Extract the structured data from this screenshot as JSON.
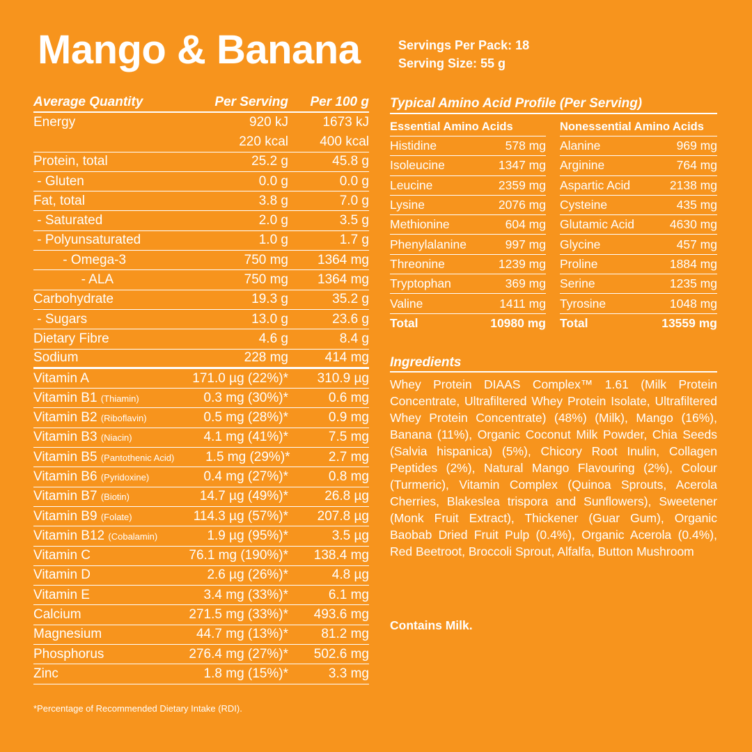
{
  "title": "Mango & Banana",
  "servings_per_pack": "Servings Per Pack: 18",
  "serving_size": "Serving Size: 55 g",
  "nutrition": {
    "headers": [
      "Average Quantity",
      "Per Serving",
      "Per 100 g"
    ],
    "rows": [
      {
        "name": "Energy",
        "serving": "920 kJ",
        "per100": "1673 kJ"
      },
      {
        "name": "",
        "serving": "220 kcal",
        "per100": "400 kcal"
      },
      {
        "name": "Protein, total",
        "serving": "25.2 g",
        "per100": "45.8 g"
      },
      {
        "name": " - Gluten",
        "serving": "0.0 g",
        "per100": "0.0 g"
      },
      {
        "name": "Fat, total",
        "serving": "3.8 g",
        "per100": "7.0 g"
      },
      {
        "name": " - Saturated",
        "serving": "2.0 g",
        "per100": "3.5 g"
      },
      {
        "name": " - Polyunsaturated",
        "serving": "1.0 g",
        "per100": "1.7 g"
      },
      {
        "name": "        - Omega-3",
        "serving": "750 mg",
        "per100": "1364 mg"
      },
      {
        "name": "             - ALA",
        "serving": "750 mg",
        "per100": "1364 mg"
      },
      {
        "name": "Carbohydrate",
        "serving": "19.3 g",
        "per100": "35.2 g"
      },
      {
        "name": " - Sugars",
        "serving": "13.0 g",
        "per100": "23.6 g"
      },
      {
        "name": "Dietary Fibre",
        "serving": "4.6 g",
        "per100": "8.4 g"
      },
      {
        "name": "Sodium",
        "serving": "228 mg",
        "per100": "414 mg"
      }
    ],
    "vitamins": [
      {
        "name": "Vitamin A",
        "sub": "",
        "serving": "171.0 µg (22%)*",
        "per100": "310.9 µg"
      },
      {
        "name": "Vitamin B1 ",
        "sub": "(Thiamin)",
        "serving": "0.3 mg (30%)*",
        "per100": "0.6 mg"
      },
      {
        "name": "Vitamin B2 ",
        "sub": "(Riboflavin)",
        "serving": "0.5 mg (28%)*",
        "per100": "0.9 mg"
      },
      {
        "name": "Vitamin B3 ",
        "sub": "(Niacin)",
        "serving": "4.1 mg (41%)*",
        "per100": "7.5 mg"
      },
      {
        "name": "Vitamin B5 ",
        "sub": "(Pantothenic Acid)",
        "serving": "1.5 mg (29%)*",
        "per100": "2.7 mg"
      },
      {
        "name": "Vitamin B6 ",
        "sub": "(Pyridoxine)",
        "serving": "0.4 mg (27%)*",
        "per100": "0.8 mg"
      },
      {
        "name": "Vitamin B7 ",
        "sub": "(Biotin)",
        "serving": "14.7 µg (49%)*",
        "per100": "26.8 µg"
      },
      {
        "name": "Vitamin B9 ",
        "sub": "(Folate)",
        "serving": "114.3 µg (57%)*",
        "per100": "207.8 µg"
      },
      {
        "name": "Vitamin B12 ",
        "sub": "(Cobalamin)",
        "serving": "1.9 µg (95%)*",
        "per100": "3.5 µg"
      },
      {
        "name": "Vitamin C",
        "sub": "",
        "serving": "76.1 mg (190%)*",
        "per100": "138.4 mg"
      },
      {
        "name": "Vitamin D",
        "sub": "",
        "serving": "2.6 µg (26%)*",
        "per100": "4.8 µg"
      },
      {
        "name": "Vitamin E",
        "sub": "",
        "serving": "3.4 mg (33%)*",
        "per100": "6.1 mg"
      },
      {
        "name": "Calcium",
        "sub": "",
        "serving": "271.5 mg (33%)*",
        "per100": "493.6 mg"
      },
      {
        "name": "Magnesium",
        "sub": "",
        "serving": "44.7 mg (13%)*",
        "per100": "81.2 mg"
      },
      {
        "name": "Phosphorus",
        "sub": "",
        "serving": "276.4 mg (27%)*",
        "per100": "502.6 mg"
      },
      {
        "name": "Zinc",
        "sub": "",
        "serving": "1.8 mg (15%)*",
        "per100": "3.3 mg"
      }
    ],
    "footnote": "*Percentage of Recommended Dietary Intake (RDI)."
  },
  "amino": {
    "title": "Typical Amino Acid Profile (Per Serving)",
    "essential": {
      "header": "Essential Amino Acids",
      "items": [
        [
          "Histidine",
          "578 mg"
        ],
        [
          "Isoleucine",
          "1347 mg"
        ],
        [
          "Leucine",
          "2359 mg"
        ],
        [
          "Lysine",
          "2076 mg"
        ],
        [
          "Methionine",
          "604 mg"
        ],
        [
          "Phenylalanine",
          "997 mg"
        ],
        [
          "Threonine",
          "1239 mg"
        ],
        [
          "Tryptophan",
          "369 mg"
        ],
        [
          "Valine",
          "1411 mg"
        ]
      ],
      "total": [
        "Total",
        "10980 mg"
      ]
    },
    "nonessential": {
      "header": "Nonessential Amino Acids",
      "items": [
        [
          "Alanine",
          "969 mg"
        ],
        [
          "Arginine",
          "764 mg"
        ],
        [
          "Aspartic Acid",
          "2138 mg"
        ],
        [
          "Cysteine",
          "435 mg"
        ],
        [
          "Glutamic Acid",
          "4630 mg"
        ],
        [
          "Glycine",
          "457 mg"
        ],
        [
          "Proline",
          "1884 mg"
        ],
        [
          "Serine",
          "1235 mg"
        ],
        [
          "Tyrosine",
          "1048 mg"
        ]
      ],
      "total": [
        "Total",
        "13559 mg"
      ]
    }
  },
  "ingredients": {
    "heading": "Ingredients",
    "text": "Whey Protein DIAAS Complex™ 1.61 (Milk Protein Concentrate, Ultrafiltered Whey Protein Isolate, Ul­trafiltered Whey Protein Concentrate) (48%) (Milk), Mango (16%), Banana (11%), Organic Coconut Milk Powder, Chia Seeds (Salvia hispanica) (5%), Chicory Root Inulin, Collagen Peptides (2%), Natu­ral Mango Flavouring (2%), Colour (Turmeric), Vita­min Complex (Quinoa Sprouts, Acerola Cherries, Blakeslea trispora and Sunflowers), Sweetener (Monk Fruit Extract), Thickener (Guar Gum), Organ­ic Baobab Dried Fruit Pulp (0.4%), Organic Acerola (0.4%), Red Beetroot, Broccoli Sprout, Alfalfa, Button Mushroom",
    "contains": "Contains Milk."
  }
}
